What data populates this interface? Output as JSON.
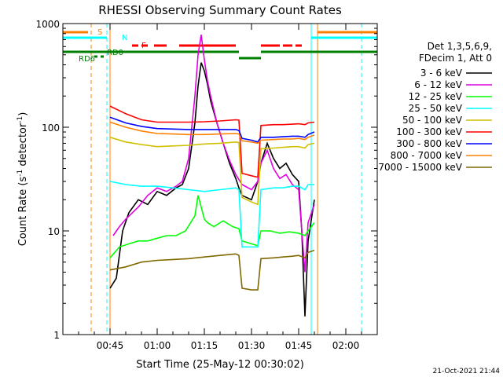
{
  "chart_data": {
    "type": "line",
    "title": "RHESSI Observing Summary Count Rates",
    "xlabel": "Start Time (25-May-12 00:30:02)",
    "ylabel_pre": "Count Rate (s",
    "ylabel_sup": "-1",
    "ylabel_mid": " detector",
    "ylabel_post": ")",
    "x_unit": "minutes after 00:30:02",
    "xlim": [
      0,
      100
    ],
    "ylim": [
      1,
      1000
    ],
    "yscale": "log",
    "xticks": [
      {
        "label": "00:45",
        "x": 15
      },
      {
        "label": "01:00",
        "x": 30
      },
      {
        "label": "01:15",
        "x": 45
      },
      {
        "label": "01:30",
        "x": 60
      },
      {
        "label": "01:45",
        "x": 75
      },
      {
        "label": "02:00",
        "x": 90
      }
    ],
    "yticks": [
      {
        "label": "1",
        "y": 1
      },
      {
        "label": "10",
        "y": 10
      },
      {
        "label": "100",
        "y": 100
      },
      {
        "label": "1000",
        "y": 1000
      }
    ],
    "legend_header": [
      "Det 1,3,5,6,9,",
      "FDecim 1, Att 0"
    ],
    "legend_position": "right",
    "series": [
      {
        "name": "3 - 6 keV",
        "color": "#000000",
        "x": [
          15,
          17,
          19,
          21,
          24,
          27,
          30,
          33,
          36,
          38,
          40,
          42,
          43,
          44,
          45,
          46,
          47,
          49,
          51,
          53,
          55,
          56,
          57,
          60,
          62,
          63,
          65,
          67,
          69,
          71,
          73,
          75,
          76,
          77,
          78,
          80
        ],
        "y": [
          2.8,
          3.5,
          10,
          15,
          20,
          18,
          24,
          22,
          26,
          28,
          40,
          110,
          250,
          420,
          350,
          260,
          180,
          110,
          70,
          45,
          32,
          26,
          22,
          20,
          30,
          45,
          70,
          50,
          40,
          45,
          35,
          30,
          10,
          1.5,
          8,
          20
        ]
      },
      {
        "name": "6 - 12 keV",
        "color": "#e000e0",
        "x": [
          16,
          18,
          20,
          24,
          27,
          30,
          33,
          36,
          38,
          40,
          42,
          43,
          44,
          45,
          46,
          47,
          49,
          51,
          53,
          55,
          57,
          60,
          62,
          63,
          65,
          67,
          69,
          71,
          73,
          75,
          77,
          78,
          80
        ],
        "y": [
          9,
          11,
          13,
          17,
          22,
          26,
          24,
          27,
          30,
          50,
          200,
          500,
          780,
          450,
          280,
          200,
          110,
          70,
          48,
          35,
          28,
          25,
          30,
          45,
          60,
          40,
          32,
          35,
          28,
          25,
          4,
          12,
          18
        ]
      },
      {
        "name": "12 - 25 keV",
        "color": "#00ff00",
        "x": [
          15,
          18,
          21,
          24,
          27,
          30,
          33,
          36,
          39,
          42,
          43,
          44,
          45,
          46,
          48,
          51,
          54,
          56,
          57,
          60,
          62,
          63,
          66,
          69,
          72,
          75,
          77,
          78,
          80
        ],
        "y": [
          5.5,
          7,
          7.5,
          8,
          8,
          8.5,
          9,
          9,
          10,
          14,
          22,
          17,
          13,
          12,
          11,
          12.5,
          11,
          10.5,
          8,
          7.5,
          7.2,
          10,
          10,
          9.5,
          9.8,
          9.5,
          9,
          10,
          12
        ]
      },
      {
        "name": "25 - 50 keV",
        "color": "#00ffff",
        "x": [
          15,
          20,
          25,
          30,
          35,
          40,
          45,
          50,
          55,
          56,
          57,
          60,
          62,
          63,
          67,
          70,
          73,
          75,
          77,
          78,
          80
        ],
        "y": [
          30,
          28,
          27,
          27,
          26,
          25,
          24,
          25,
          26,
          25,
          7,
          7,
          7,
          25,
          26,
          26,
          27,
          27,
          25,
          28,
          28
        ]
      },
      {
        "name": "50 - 100 keV",
        "color": "#d0c000",
        "x": [
          15,
          20,
          25,
          30,
          35,
          40,
          45,
          50,
          55,
          56,
          57,
          60,
          62,
          63,
          67,
          70,
          73,
          75,
          77,
          78,
          80
        ],
        "y": [
          80,
          72,
          68,
          65,
          66,
          67,
          69,
          70,
          72,
          71,
          21,
          19,
          18,
          62,
          63,
          64,
          65,
          65,
          63,
          68,
          70
        ]
      },
      {
        "name": "100 - 300 keV",
        "color": "#ff0000",
        "x": [
          15,
          20,
          25,
          30,
          35,
          40,
          45,
          50,
          55,
          56,
          57,
          60,
          62,
          63,
          67,
          70,
          73,
          75,
          77,
          78,
          80
        ],
        "y": [
          160,
          135,
          118,
          112,
          112,
          112,
          113,
          115,
          118,
          117,
          36,
          34,
          33,
          104,
          106,
          106,
          107,
          108,
          106,
          110,
          112
        ]
      },
      {
        "name": "300 - 800 keV",
        "color": "#0000ff",
        "x": [
          15,
          20,
          25,
          30,
          35,
          40,
          45,
          50,
          55,
          56,
          57,
          60,
          62,
          63,
          67,
          70,
          73,
          75,
          77,
          78,
          80
        ],
        "y": [
          125,
          110,
          102,
          97,
          96,
          95,
          95,
          95,
          95,
          93,
          78,
          75,
          72,
          80,
          80,
          81,
          82,
          82,
          80,
          85,
          90
        ]
      },
      {
        "name": "800 - 7000 keV",
        "color": "#ff8000",
        "x": [
          15,
          20,
          25,
          30,
          35,
          40,
          45,
          50,
          55,
          56,
          57,
          60,
          62,
          63,
          67,
          70,
          73,
          75,
          77,
          78,
          80
        ],
        "y": [
          112,
          100,
          92,
          87,
          86,
          85,
          85,
          86,
          87,
          86,
          74,
          72,
          70,
          75,
          76,
          77,
          77,
          78,
          76,
          80,
          84
        ]
      },
      {
        "name": "7000 - 15000 keV",
        "color": "#806800",
        "x": [
          15,
          20,
          25,
          30,
          35,
          40,
          45,
          50,
          55,
          56,
          57,
          60,
          62,
          63,
          67,
          70,
          73,
          75,
          77,
          78,
          80
        ],
        "y": [
          4.2,
          4.5,
          5,
          5.2,
          5.3,
          5.4,
          5.6,
          5.8,
          6,
          5.8,
          2.8,
          2.7,
          2.7,
          5.4,
          5.5,
          5.6,
          5.7,
          5.8,
          5.5,
          6.2,
          6.5
        ]
      }
    ],
    "flag_bars": [
      {
        "label": "S",
        "color": "#ff8000",
        "segments": [
          [
            -5,
            8
          ],
          [
            81,
            100
          ]
        ]
      },
      {
        "label": "N",
        "color": "#00ffff",
        "segments": [
          [
            -5,
            14
          ],
          [
            79,
            100
          ]
        ]
      },
      {
        "label": "F",
        "color": "#ff0000",
        "segments": [
          [
            22,
            24
          ],
          [
            25,
            27
          ],
          [
            29,
            33
          ],
          [
            37,
            55
          ],
          [
            63,
            69
          ],
          [
            70,
            73
          ],
          [
            74,
            76
          ]
        ]
      },
      {
        "label": "RD0",
        "color": "#008000",
        "segments": [
          [
            -5,
            56
          ],
          [
            63,
            100
          ]
        ]
      },
      {
        "label": "",
        "color": "#008000",
        "segments": [
          [
            56,
            63
          ]
        ]
      },
      {
        "label": "RD6",
        "color": "#008000",
        "segments": [
          [
            10,
            11
          ],
          [
            12,
            13
          ]
        ]
      }
    ],
    "vlines": [
      {
        "x": 9,
        "color": "#ff8000",
        "style": "dashed"
      },
      {
        "x": 14,
        "color": "#00ffff",
        "style": "dashed"
      },
      {
        "x": 15,
        "color": "#ff8000",
        "style": "solid"
      },
      {
        "x": 79,
        "color": "#00ffff",
        "style": "solid"
      },
      {
        "x": 81,
        "color": "#ff8000",
        "style": "solid"
      },
      {
        "x": 95,
        "color": "#00ffff",
        "style": "dashed"
      }
    ],
    "footer_date": "21-Oct-2021 21:44"
  }
}
